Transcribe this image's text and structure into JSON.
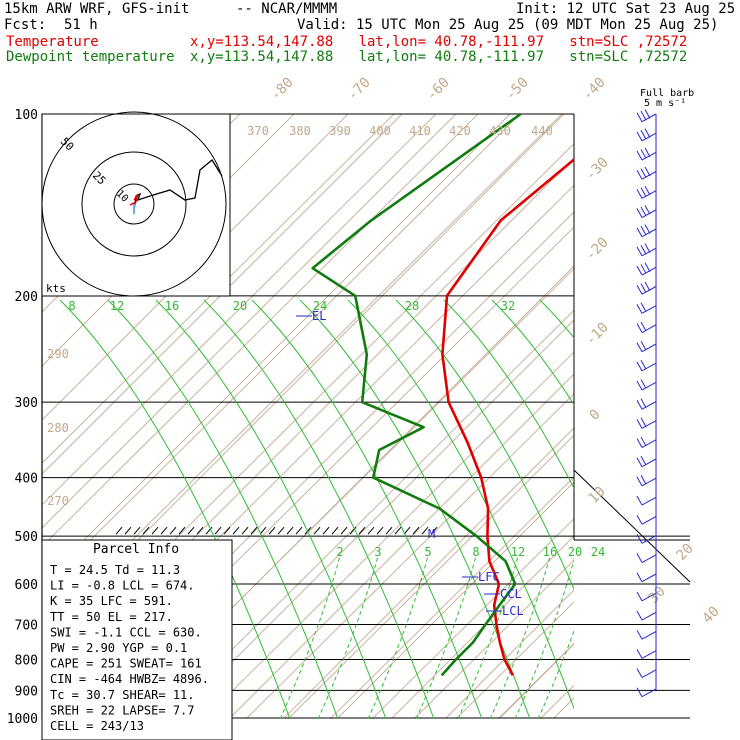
{
  "header": {
    "model": "15km ARW WRF, GFS-init",
    "center": "-- NCAR/MMMM",
    "init": "Init: 12 UTC Sat 23 Aug 25",
    "fcst_label": "Fcst:",
    "fcst_value": "51 h",
    "valid": "Valid: 15 UTC Mon 25 Aug 25 (09 MDT Mon 25 Aug 25)",
    "temp_label": "Temperature",
    "temp_loc": "x,y=113.54,147.88   lat,lon= 40.78,-111.97   stn=SLC ,72572",
    "dew_label": "Dewpoint temperature",
    "dew_loc": "x,y=113.54,147.88   lat,lon= 40.78,-111.97   stn=SLC ,72572"
  },
  "barb_legend": {
    "line1": "Full barb",
    "line2": "5 m s⁻¹"
  },
  "parcel_info": {
    "title": "Parcel Info",
    "rows": [
      "T   =   24.5  Td =  11.3",
      "LI  =   -0.8  LCL =  674.",
      "K   =     35  LFC =  591.",
      "TT  =     50  EL  =  217.",
      "SWI =   -1.1  CCL =  630.",
      "PW  =   2.90  YGP =   0.1",
      "CAPE =   251  SWEAT=  161",
      "CIN =   -464  HWBZ= 4896.",
      "Tc  =   30.7  SHEAR=  11.",
      "SREH =    22  LAPSE=  7.7",
      "CELL = 243/13"
    ]
  },
  "colors": {
    "temperature": "#e00000",
    "dewpoint": "#107c10",
    "isotherm": "#c8b4a0",
    "mixing_ratio": "#33bb33",
    "wind": "#2a2ad0",
    "label_tan": "#c0a888"
  },
  "chart_data": {
    "type": "skew-t",
    "pressure_levels": [
      100,
      200,
      300,
      400,
      500,
      600,
      700,
      800,
      900,
      1000
    ],
    "temperature_labels": [
      "-80",
      "-70",
      "-60",
      "-50",
      "-40",
      "-30",
      "-20",
      "-10",
      "0",
      "10",
      "20",
      "30",
      "40"
    ],
    "theta_labels": [
      "370",
      "380",
      "390",
      "400",
      "410",
      "420",
      "430",
      "440",
      "290",
      "280",
      "270"
    ],
    "mixing_ratio_labels": [
      "2",
      "3",
      "5",
      "8",
      "12",
      "16",
      "20",
      "24"
    ],
    "hodograph_labels": [
      "8",
      "12",
      "16",
      "20",
      "24",
      "28",
      "32"
    ],
    "hodograph_rings": [
      "50",
      "25",
      "10"
    ],
    "hodograph_units": "kts",
    "levels_marked": [
      "EL",
      "LFC",
      "CCL",
      "LCL",
      "M"
    ],
    "temperature_profile": [
      {
        "p": 100,
        "t": -58
      },
      {
        "p": 150,
        "t": -62
      },
      {
        "p": 200,
        "t": -58
      },
      {
        "p": 250,
        "t": -48
      },
      {
        "p": 300,
        "t": -38
      },
      {
        "p": 350,
        "t": -27
      },
      {
        "p": 400,
        "t": -18
      },
      {
        "p": 450,
        "t": -11
      },
      {
        "p": 500,
        "t": -6
      },
      {
        "p": 550,
        "t": -1
      },
      {
        "p": 600,
        "t": 5
      },
      {
        "p": 650,
        "t": 8
      },
      {
        "p": 700,
        "t": 12
      },
      {
        "p": 750,
        "t": 16
      },
      {
        "p": 800,
        "t": 20
      },
      {
        "p": 850,
        "t": 24.5
      }
    ],
    "dewpoint_profile": [
      {
        "p": 100,
        "t": -78
      },
      {
        "p": 150,
        "t": -86
      },
      {
        "p": 180,
        "t": -88
      },
      {
        "p": 200,
        "t": -75
      },
      {
        "p": 250,
        "t": -62
      },
      {
        "p": 300,
        "t": -54
      },
      {
        "p": 330,
        "t": -38
      },
      {
        "p": 360,
        "t": -42
      },
      {
        "p": 400,
        "t": -38
      },
      {
        "p": 450,
        "t": -20
      },
      {
        "p": 500,
        "t": -8
      },
      {
        "p": 550,
        "t": 2
      },
      {
        "p": 600,
        "t": 8
      },
      {
        "p": 650,
        "t": 9
      },
      {
        "p": 700,
        "t": 10
      },
      {
        "p": 750,
        "t": 11
      },
      {
        "p": 800,
        "t": 11
      },
      {
        "p": 850,
        "t": 11.3
      }
    ],
    "wind_levels": [
      105,
      130,
      155,
      180,
      205,
      230,
      255,
      280,
      305,
      330,
      355,
      380,
      405,
      430,
      455,
      480,
      505,
      530,
      555,
      580,
      605,
      630,
      655,
      680,
      705,
      730,
      755,
      780,
      805,
      830,
      855
    ]
  }
}
